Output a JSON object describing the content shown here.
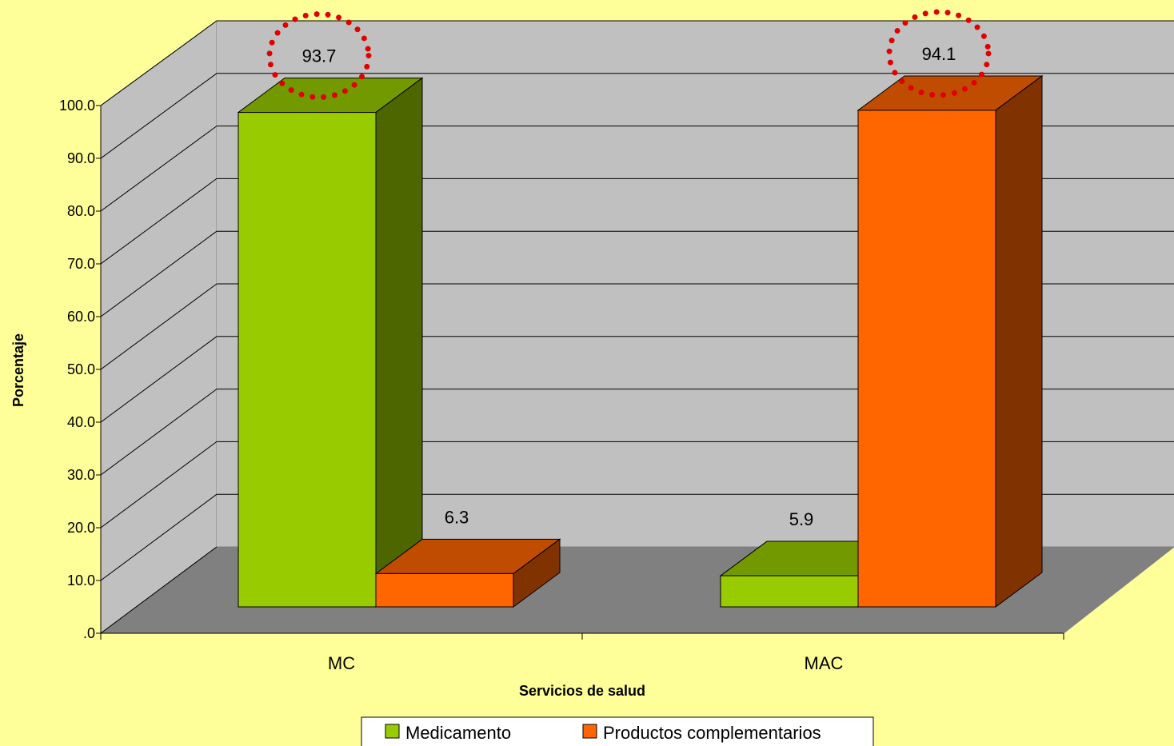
{
  "chart_data": {
    "type": "bar",
    "title": "",
    "xlabel": "Servicios de salud",
    "ylabel": "Porcentaje",
    "categories": [
      "MC",
      "MAC"
    ],
    "series": [
      {
        "name": "Medicamento",
        "values": [
          93.7,
          5.9
        ]
      },
      {
        "name": "Productos complementarios",
        "values": [
          6.3,
          94.1
        ]
      }
    ],
    "ylim": [
      0,
      100
    ],
    "y_ticks": [
      ".0",
      "10.0",
      "20.0",
      "30.0",
      "40.0",
      "50.0",
      "60.0",
      "70.0",
      "80.0",
      "90.0",
      "100.0"
    ],
    "data_labels": [
      {
        "series": 0,
        "category": 0,
        "text": "93.7",
        "highlighted": true
      },
      {
        "series": 1,
        "category": 0,
        "text": "6.3",
        "highlighted": false
      },
      {
        "series": 0,
        "category": 1,
        "text": "5.9",
        "highlighted": false
      },
      {
        "series": 1,
        "category": 1,
        "text": "94.1",
        "highlighted": true
      }
    ],
    "grid": true,
    "three_d": true,
    "legend_position": "bottom",
    "colors": {
      "background": "#FFFF99",
      "wall": "#C0C0C0",
      "floor": "#808080",
      "series": [
        {
          "front": "#99CC00",
          "top": "#739900",
          "side": "#4D6600"
        },
        {
          "front": "#FF6600",
          "top": "#BF4C00",
          "side": "#803300"
        }
      ],
      "highlight_circle": "#E00000"
    }
  }
}
